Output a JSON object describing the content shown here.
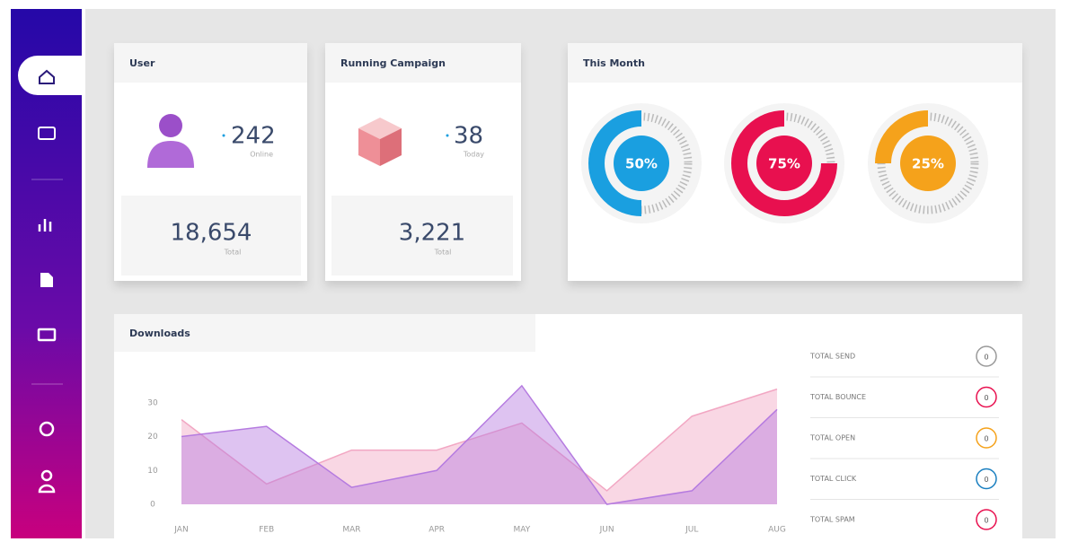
{
  "user": {
    "title": "User",
    "value": "242",
    "value_caption": "Online",
    "total": "18,654",
    "total_caption": "Total"
  },
  "campaign": {
    "title": "Running Campaign",
    "value": "38",
    "value_caption": "Today",
    "total": "3,221",
    "total_caption": "Total"
  },
  "this_month": {
    "title": "This Month",
    "gauges": [
      {
        "value": 50,
        "label": "50%",
        "color": "#1a9fe0"
      },
      {
        "value": 75,
        "label": "75%",
        "color": "#e8104f"
      },
      {
        "value": 25,
        "label": "25%",
        "color": "#f5a21b"
      }
    ]
  },
  "downloads": {
    "title": "Downloads",
    "type": "area",
    "categories": [
      "JAN",
      "FEB",
      "MAR",
      "APR",
      "MAY",
      "JUN",
      "JUL",
      "AUG"
    ],
    "series": [
      {
        "color": "#f2a7c3",
        "values": [
          25,
          6,
          16,
          16,
          24,
          4,
          26,
          34
        ]
      },
      {
        "color": "#b57be0",
        "values": [
          20,
          23,
          5,
          10,
          35,
          0,
          4,
          28
        ]
      }
    ],
    "ylim": [
      0,
      40
    ],
    "yticks": [
      0,
      10,
      20,
      30
    ]
  },
  "stats": [
    {
      "label": "TOTAL SEND",
      "value": "0",
      "color": "#999999"
    },
    {
      "label": "TOTAL BOUNCE",
      "value": "0",
      "color": "#e8104f"
    },
    {
      "label": "TOTAL OPEN",
      "value": "0",
      "color": "#f5a21b"
    },
    {
      "label": "TOTAL CLICK",
      "value": "0",
      "color": "#1a7fc0"
    },
    {
      "label": "TOTAL SPAM",
      "value": "0",
      "color": "#e8104f"
    }
  ]
}
